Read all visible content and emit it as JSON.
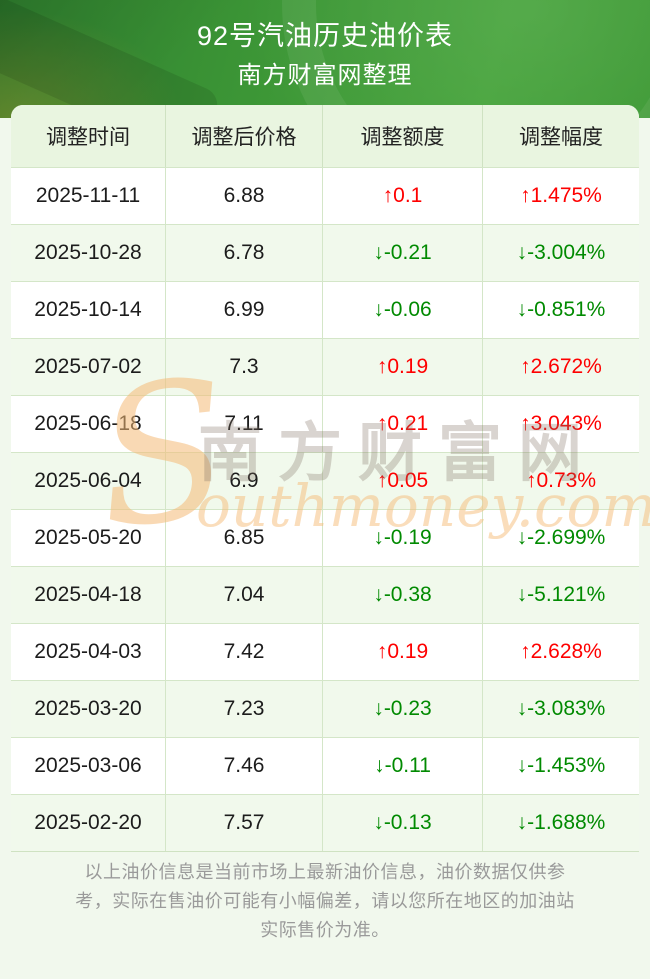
{
  "header": {
    "title": "92号汽油历史油价表",
    "subtitle": "南方财富网整理"
  },
  "table": {
    "columns": [
      "调整时间",
      "调整后价格",
      "调整额度",
      "调整幅度"
    ],
    "rows": [
      {
        "date": "2025-11-11",
        "price": "6.88",
        "change": "↑0.1",
        "pct": "↑1.475%",
        "dir": "up"
      },
      {
        "date": "2025-10-28",
        "price": "6.78",
        "change": "↓-0.21",
        "pct": "↓-3.004%",
        "dir": "down"
      },
      {
        "date": "2025-10-14",
        "price": "6.99",
        "change": "↓-0.06",
        "pct": "↓-0.851%",
        "dir": "down"
      },
      {
        "date": "2025-07-02",
        "price": "7.3",
        "change": "↑0.19",
        "pct": "↑2.672%",
        "dir": "up"
      },
      {
        "date": "2025-06-18",
        "price": "7.11",
        "change": "↑0.21",
        "pct": "↑3.043%",
        "dir": "up"
      },
      {
        "date": "2025-06-04",
        "price": "6.9",
        "change": "↑0.05",
        "pct": "↑0.73%",
        "dir": "up"
      },
      {
        "date": "2025-05-20",
        "price": "6.85",
        "change": "↓-0.19",
        "pct": "↓-2.699%",
        "dir": "down"
      },
      {
        "date": "2025-04-18",
        "price": "7.04",
        "change": "↓-0.38",
        "pct": "↓-5.121%",
        "dir": "down"
      },
      {
        "date": "2025-04-03",
        "price": "7.42",
        "change": "↑0.19",
        "pct": "↑2.628%",
        "dir": "up"
      },
      {
        "date": "2025-03-20",
        "price": "7.23",
        "change": "↓-0.23",
        "pct": "↓-3.083%",
        "dir": "down"
      },
      {
        "date": "2025-03-06",
        "price": "7.46",
        "change": "↓-0.11",
        "pct": "↓-1.453%",
        "dir": "down"
      },
      {
        "date": "2025-02-20",
        "price": "7.57",
        "change": "↓-0.13",
        "pct": "↓-1.688%",
        "dir": "down"
      }
    ]
  },
  "watermark": {
    "initial": "S",
    "cn": "南方财富网",
    "en": "outhmoney.com"
  },
  "footer": {
    "disclaimer": "以上油价信息是当前市场上最新油价信息，油价数据仅供参考，实际在售油价可能有小幅偏差，请以您所在地区的加油站实际售价为准。"
  },
  "colors": {
    "banner_green": "#3e9a35",
    "up_red": "#fe0000",
    "down_green": "#018a01",
    "header_row_bg": "#e9f5e0",
    "alt_row_bg": "#f1f9ec",
    "watermark_orange": "#f4ba76",
    "note_gray": "#9a9a9a"
  },
  "chart_data": {
    "type": "table",
    "title": "92号汽油历史油价表",
    "source": "南方财富网整理",
    "columns": [
      "调整时间",
      "调整后价格",
      "调整额度",
      "调整幅度"
    ],
    "rows": [
      [
        "2025-11-11",
        6.88,
        0.1,
        1.475
      ],
      [
        "2025-10-28",
        6.78,
        -0.21,
        -3.004
      ],
      [
        "2025-10-14",
        6.99,
        -0.06,
        -0.851
      ],
      [
        "2025-07-02",
        7.3,
        0.19,
        2.672
      ],
      [
        "2025-06-18",
        7.11,
        0.21,
        3.043
      ],
      [
        "2025-06-04",
        6.9,
        0.05,
        0.73
      ],
      [
        "2025-05-20",
        6.85,
        -0.19,
        -2.699
      ],
      [
        "2025-04-18",
        7.04,
        -0.38,
        -5.121
      ],
      [
        "2025-04-03",
        7.42,
        0.19,
        2.628
      ],
      [
        "2025-03-20",
        7.23,
        -0.23,
        -3.083
      ],
      [
        "2025-03-06",
        7.46,
        -0.11,
        -1.453
      ],
      [
        "2025-02-20",
        7.57,
        -0.13,
        -1.688
      ]
    ]
  }
}
